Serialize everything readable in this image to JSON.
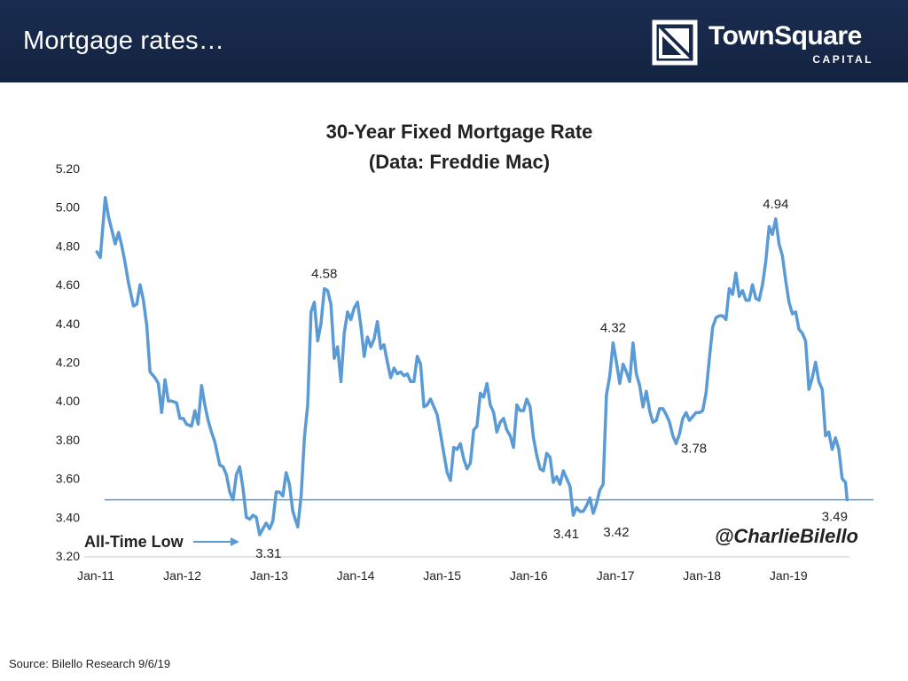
{
  "slide": {
    "title": "Mortgage rates…",
    "source": "Source: Bilello Research 9/6/19"
  },
  "logo": {
    "name": "TownSquare",
    "sub": "CAPITAL"
  },
  "colors": {
    "header_bg": "#132341",
    "line": "#5b9bd5",
    "reference_line": "#5b9bd5",
    "text": "#222222"
  },
  "chart_data": {
    "type": "line",
    "title": "30-Year Fixed Mortgage Rate",
    "subtitle": "(Data: Freddie Mac)",
    "watermark": "@CharlieBilello",
    "xlabel": "",
    "ylabel": "",
    "ylim": [
      3.2,
      5.2
    ],
    "yticks": [
      "5.20",
      "5.00",
      "4.80",
      "4.60",
      "4.40",
      "4.20",
      "4.00",
      "3.80",
      "3.60",
      "3.40",
      "3.20"
    ],
    "xticks": [
      "Jan-11",
      "Jan-12",
      "Jan-13",
      "Jan-14",
      "Jan-15",
      "Jan-16",
      "Jan-17",
      "Jan-18",
      "Jan-19"
    ],
    "xlim": [
      "2011-01-01",
      "2019-09-15"
    ],
    "grid": false,
    "series": [
      {
        "values": [
          [
            "2011-01-06",
            4.77
          ],
          [
            "2011-01-20",
            4.74
          ],
          [
            "2011-02-10",
            5.05
          ],
          [
            "2011-02-24",
            4.95
          ],
          [
            "2011-03-10",
            4.88
          ],
          [
            "2011-03-24",
            4.81
          ],
          [
            "2011-04-07",
            4.87
          ],
          [
            "2011-04-21",
            4.8
          ],
          [
            "2011-05-05",
            4.71
          ],
          [
            "2011-05-19",
            4.61
          ],
          [
            "2011-06-09",
            4.49
          ],
          [
            "2011-06-23",
            4.5
          ],
          [
            "2011-07-07",
            4.6
          ],
          [
            "2011-07-21",
            4.52
          ],
          [
            "2011-08-04",
            4.39
          ],
          [
            "2011-08-18",
            4.15
          ],
          [
            "2011-09-08",
            4.12
          ],
          [
            "2011-09-22",
            4.09
          ],
          [
            "2011-10-06",
            3.94
          ],
          [
            "2011-10-20",
            4.11
          ],
          [
            "2011-11-03",
            4.0
          ],
          [
            "2011-11-17",
            4.0
          ],
          [
            "2011-12-08",
            3.99
          ],
          [
            "2011-12-22",
            3.91
          ],
          [
            "2012-01-05",
            3.91
          ],
          [
            "2012-01-19",
            3.88
          ],
          [
            "2012-02-09",
            3.87
          ],
          [
            "2012-02-23",
            3.95
          ],
          [
            "2012-03-08",
            3.88
          ],
          [
            "2012-03-22",
            4.08
          ],
          [
            "2012-04-05",
            3.98
          ],
          [
            "2012-04-19",
            3.9
          ],
          [
            "2012-05-03",
            3.84
          ],
          [
            "2012-05-17",
            3.79
          ],
          [
            "2012-06-07",
            3.67
          ],
          [
            "2012-06-21",
            3.66
          ],
          [
            "2012-07-05",
            3.62
          ],
          [
            "2012-07-19",
            3.53
          ],
          [
            "2012-08-02",
            3.49
          ],
          [
            "2012-08-16",
            3.62
          ],
          [
            "2012-08-30",
            3.66
          ],
          [
            "2012-09-13",
            3.55
          ],
          [
            "2012-09-27",
            3.4
          ],
          [
            "2012-10-11",
            3.39
          ],
          [
            "2012-10-25",
            3.41
          ],
          [
            "2012-11-08",
            3.4
          ],
          [
            "2012-11-22",
            3.31
          ],
          [
            "2012-12-06",
            3.34
          ],
          [
            "2012-12-20",
            3.37
          ],
          [
            "2013-01-03",
            3.34
          ],
          [
            "2013-01-17",
            3.38
          ],
          [
            "2013-01-31",
            3.53
          ],
          [
            "2013-02-14",
            3.53
          ],
          [
            "2013-02-28",
            3.51
          ],
          [
            "2013-03-14",
            3.63
          ],
          [
            "2013-03-28",
            3.57
          ],
          [
            "2013-04-11",
            3.43
          ],
          [
            "2013-05-02",
            3.35
          ],
          [
            "2013-05-16",
            3.51
          ],
          [
            "2013-05-30",
            3.81
          ],
          [
            "2013-06-13",
            3.98
          ],
          [
            "2013-06-27",
            4.46
          ],
          [
            "2013-07-11",
            4.51
          ],
          [
            "2013-07-25",
            4.31
          ],
          [
            "2013-08-08",
            4.4
          ],
          [
            "2013-08-22",
            4.58
          ],
          [
            "2013-09-05",
            4.57
          ],
          [
            "2013-09-19",
            4.5
          ],
          [
            "2013-10-03",
            4.22
          ],
          [
            "2013-10-17",
            4.28
          ],
          [
            "2013-10-31",
            4.1
          ],
          [
            "2013-11-14",
            4.35
          ],
          [
            "2013-11-28",
            4.46
          ],
          [
            "2013-12-12",
            4.42
          ],
          [
            "2013-12-26",
            4.48
          ],
          [
            "2014-01-09",
            4.51
          ],
          [
            "2014-01-23",
            4.39
          ],
          [
            "2014-02-06",
            4.23
          ],
          [
            "2014-02-20",
            4.33
          ],
          [
            "2014-03-06",
            4.28
          ],
          [
            "2014-03-20",
            4.32
          ],
          [
            "2014-04-03",
            4.41
          ],
          [
            "2014-04-17",
            4.27
          ],
          [
            "2014-05-01",
            4.29
          ],
          [
            "2014-05-15",
            4.2
          ],
          [
            "2014-05-29",
            4.12
          ],
          [
            "2014-06-12",
            4.17
          ],
          [
            "2014-06-26",
            4.14
          ],
          [
            "2014-07-10",
            4.15
          ],
          [
            "2014-07-24",
            4.13
          ],
          [
            "2014-08-07",
            4.14
          ],
          [
            "2014-08-21",
            4.1
          ],
          [
            "2014-09-04",
            4.1
          ],
          [
            "2014-09-18",
            4.23
          ],
          [
            "2014-10-02",
            4.19
          ],
          [
            "2014-10-16",
            3.97
          ],
          [
            "2014-10-30",
            3.98
          ],
          [
            "2014-11-13",
            4.01
          ],
          [
            "2014-11-27",
            3.97
          ],
          [
            "2014-12-11",
            3.93
          ],
          [
            "2014-12-25",
            3.83
          ],
          [
            "2015-01-08",
            3.73
          ],
          [
            "2015-01-22",
            3.63
          ],
          [
            "2015-02-05",
            3.59
          ],
          [
            "2015-02-19",
            3.76
          ],
          [
            "2015-03-05",
            3.75
          ],
          [
            "2015-03-19",
            3.78
          ],
          [
            "2015-04-02",
            3.7
          ],
          [
            "2015-04-16",
            3.65
          ],
          [
            "2015-04-30",
            3.68
          ],
          [
            "2015-05-14",
            3.85
          ],
          [
            "2015-05-28",
            3.87
          ],
          [
            "2015-06-11",
            4.04
          ],
          [
            "2015-06-25",
            4.02
          ],
          [
            "2015-07-09",
            4.09
          ],
          [
            "2015-07-23",
            3.98
          ],
          [
            "2015-08-06",
            3.94
          ],
          [
            "2015-08-20",
            3.84
          ],
          [
            "2015-09-03",
            3.89
          ],
          [
            "2015-09-17",
            3.91
          ],
          [
            "2015-10-01",
            3.85
          ],
          [
            "2015-10-15",
            3.82
          ],
          [
            "2015-10-29",
            3.76
          ],
          [
            "2015-11-12",
            3.98
          ],
          [
            "2015-11-26",
            3.95
          ],
          [
            "2015-12-10",
            3.95
          ],
          [
            "2015-12-24",
            4.01
          ],
          [
            "2016-01-07",
            3.97
          ],
          [
            "2016-01-21",
            3.81
          ],
          [
            "2016-02-04",
            3.72
          ],
          [
            "2016-02-18",
            3.65
          ],
          [
            "2016-03-03",
            3.64
          ],
          [
            "2016-03-17",
            3.73
          ],
          [
            "2016-03-31",
            3.71
          ],
          [
            "2016-04-14",
            3.58
          ],
          [
            "2016-04-28",
            3.61
          ],
          [
            "2016-05-12",
            3.57
          ],
          [
            "2016-05-26",
            3.64
          ],
          [
            "2016-06-09",
            3.6
          ],
          [
            "2016-06-23",
            3.56
          ],
          [
            "2016-07-07",
            3.41
          ],
          [
            "2016-07-21",
            3.45
          ],
          [
            "2016-08-04",
            3.43
          ],
          [
            "2016-08-18",
            3.43
          ],
          [
            "2016-09-01",
            3.46
          ],
          [
            "2016-09-15",
            3.5
          ],
          [
            "2016-09-29",
            3.42
          ],
          [
            "2016-10-13",
            3.47
          ],
          [
            "2016-10-27",
            3.54
          ],
          [
            "2016-11-10",
            3.57
          ],
          [
            "2016-11-24",
            4.03
          ],
          [
            "2016-12-08",
            4.13
          ],
          [
            "2016-12-22",
            4.3
          ],
          [
            "2017-01-05",
            4.2
          ],
          [
            "2017-01-19",
            4.09
          ],
          [
            "2017-02-02",
            4.19
          ],
          [
            "2017-02-16",
            4.15
          ],
          [
            "2017-03-02",
            4.1
          ],
          [
            "2017-03-16",
            4.3
          ],
          [
            "2017-03-30",
            4.14
          ],
          [
            "2017-04-13",
            4.08
          ],
          [
            "2017-04-27",
            3.97
          ],
          [
            "2017-05-11",
            4.05
          ],
          [
            "2017-05-25",
            3.95
          ],
          [
            "2017-06-08",
            3.89
          ],
          [
            "2017-06-22",
            3.9
          ],
          [
            "2017-07-06",
            3.96
          ],
          [
            "2017-07-20",
            3.96
          ],
          [
            "2017-08-03",
            3.93
          ],
          [
            "2017-08-17",
            3.89
          ],
          [
            "2017-08-31",
            3.82
          ],
          [
            "2017-09-14",
            3.78
          ],
          [
            "2017-09-28",
            3.83
          ],
          [
            "2017-10-12",
            3.91
          ],
          [
            "2017-10-26",
            3.94
          ],
          [
            "2017-11-09",
            3.9
          ],
          [
            "2017-11-23",
            3.92
          ],
          [
            "2017-12-07",
            3.94
          ],
          [
            "2017-12-21",
            3.94
          ],
          [
            "2018-01-04",
            3.95
          ],
          [
            "2018-01-18",
            4.04
          ],
          [
            "2018-02-01",
            4.22
          ],
          [
            "2018-02-15",
            4.38
          ],
          [
            "2018-03-01",
            4.43
          ],
          [
            "2018-03-15",
            4.44
          ],
          [
            "2018-03-29",
            4.44
          ],
          [
            "2018-04-12",
            4.42
          ],
          [
            "2018-04-26",
            4.58
          ],
          [
            "2018-05-10",
            4.55
          ],
          [
            "2018-05-24",
            4.66
          ],
          [
            "2018-06-07",
            4.54
          ],
          [
            "2018-06-21",
            4.57
          ],
          [
            "2018-07-05",
            4.52
          ],
          [
            "2018-07-19",
            4.52
          ],
          [
            "2018-08-02",
            4.6
          ],
          [
            "2018-08-16",
            4.53
          ],
          [
            "2018-08-30",
            4.52
          ],
          [
            "2018-09-13",
            4.6
          ],
          [
            "2018-09-27",
            4.72
          ],
          [
            "2018-10-11",
            4.9
          ],
          [
            "2018-10-25",
            4.86
          ],
          [
            "2018-11-08",
            4.94
          ],
          [
            "2018-11-22",
            4.81
          ],
          [
            "2018-12-06",
            4.75
          ],
          [
            "2018-12-20",
            4.62
          ],
          [
            "2019-01-03",
            4.51
          ],
          [
            "2019-01-17",
            4.45
          ],
          [
            "2019-01-31",
            4.46
          ],
          [
            "2019-02-14",
            4.37
          ],
          [
            "2019-02-28",
            4.35
          ],
          [
            "2019-03-14",
            4.31
          ],
          [
            "2019-03-28",
            4.06
          ],
          [
            "2019-04-11",
            4.12
          ],
          [
            "2019-04-25",
            4.2
          ],
          [
            "2019-05-09",
            4.1
          ],
          [
            "2019-05-23",
            4.06
          ],
          [
            "2019-06-06",
            3.82
          ],
          [
            "2019-06-20",
            3.84
          ],
          [
            "2019-07-04",
            3.75
          ],
          [
            "2019-07-18",
            3.81
          ],
          [
            "2019-08-01",
            3.75
          ],
          [
            "2019-08-15",
            3.6
          ],
          [
            "2019-08-29",
            3.58
          ],
          [
            "2019-09-05",
            3.49
          ]
        ]
      }
    ],
    "reference_line": {
      "y": 3.49
    },
    "annotations": [
      {
        "text": "4.58",
        "x": "2013-08-22",
        "y": 4.58
      },
      {
        "text": "4.32",
        "x": "2016-12-22",
        "y": 4.3
      },
      {
        "text": "4.94",
        "x": "2018-11-08",
        "y": 4.94
      },
      {
        "text": "3.78",
        "x": "2017-09-14",
        "y": 3.78
      },
      {
        "text": "3.31",
        "x": "2012-11-22",
        "y": 3.31
      },
      {
        "text": "3.41",
        "x": "2016-07-07",
        "y": 3.41
      },
      {
        "text": "3.42",
        "x": "2016-09-29",
        "y": 3.42
      },
      {
        "text": "3.49",
        "x": "2019-09-05",
        "y": 3.49
      }
    ],
    "callout": {
      "text": "All-Time Low",
      "points_to": "3.31"
    }
  }
}
